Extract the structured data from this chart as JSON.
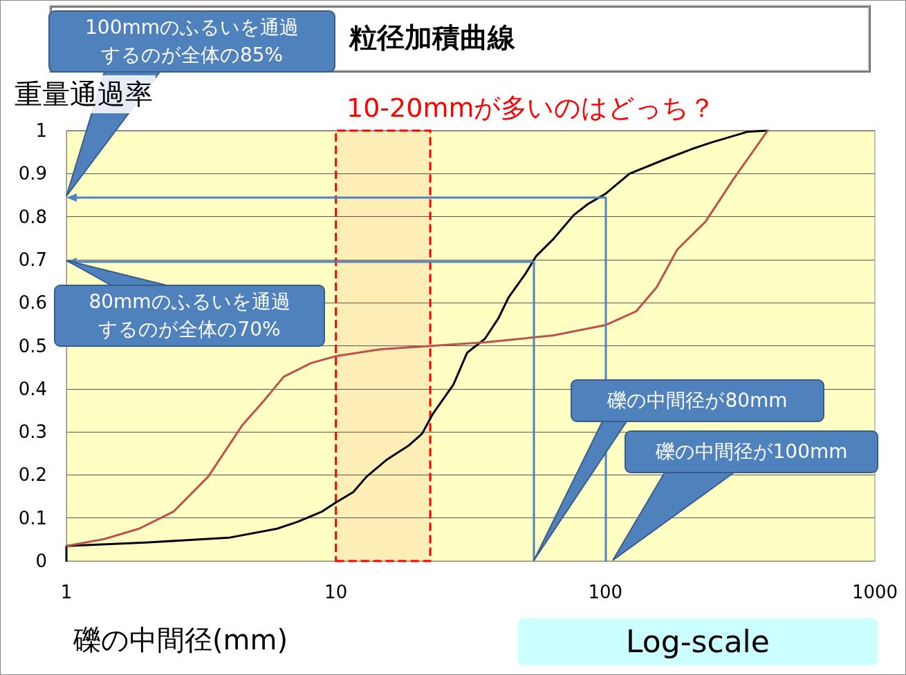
{
  "chart_data": {
    "type": "line",
    "title": "粒径加積曲線",
    "ylabel": "重量通過率",
    "xlabel": "礫の中間径(mm)",
    "log": "x",
    "xlim": [
      1,
      1000
    ],
    "xticks": [
      1,
      10,
      100,
      1000
    ],
    "ylim": [
      0,
      1
    ],
    "yticks": [
      0,
      0.1,
      0.2,
      0.3,
      0.4,
      0.5,
      0.6,
      0.7,
      0.8,
      0.9,
      1
    ],
    "grid": "y",
    "series": [
      {
        "color": "#000000",
        "x": [
          1,
          1,
          1.97,
          4.0,
          6.05,
          7.2,
          8.9,
          10,
          11.6,
          13.0,
          15.5,
          18.6,
          20.9,
          22.8,
          27.3,
          30.7,
          35.7,
          40.1,
          43.7,
          50.6,
          55.3,
          64.1,
          76.4,
          86,
          100,
          123,
          166,
          209,
          249,
          336,
          400
        ],
        "values": [
          0,
          0.035,
          0.043,
          0.054,
          0.075,
          0.091,
          0.115,
          0.136,
          0.16,
          0.196,
          0.236,
          0.268,
          0.296,
          0.34,
          0.41,
          0.484,
          0.516,
          0.564,
          0.612,
          0.668,
          0.708,
          0.748,
          0.804,
          0.829,
          0.853,
          0.9,
          0.933,
          0.957,
          0.973,
          0.997,
          1.0
        ]
      },
      {
        "color": "#c0504d",
        "x": [
          1,
          1.38,
          1.86,
          2.5,
          3.36,
          4.5,
          5.4,
          6.4,
          8.1,
          10,
          14.7,
          22.9,
          35.7,
          64,
          100,
          130,
          155,
          185,
          235,
          297,
          400
        ],
        "values": [
          0.035,
          0.051,
          0.075,
          0.115,
          0.196,
          0.316,
          0.372,
          0.428,
          0.46,
          0.476,
          0.492,
          0.5,
          0.508,
          0.524,
          0.548,
          0.58,
          0.636,
          0.724,
          0.788,
          0.885,
          1.0
        ]
      }
    ],
    "bands": [
      {
        "axis": "x",
        "from": 10,
        "to": 22.4,
        "color": "#ff0000"
      }
    ],
    "annotations": [
      "10-20mmが多いのはどっち？",
      "100mmのふるいを通過するのが全体の85%",
      "80mmのふるいを通過するのが全体の70%",
      "礫の中間径が80mm",
      "礫の中間径が100mm",
      "Log-scale"
    ]
  }
}
